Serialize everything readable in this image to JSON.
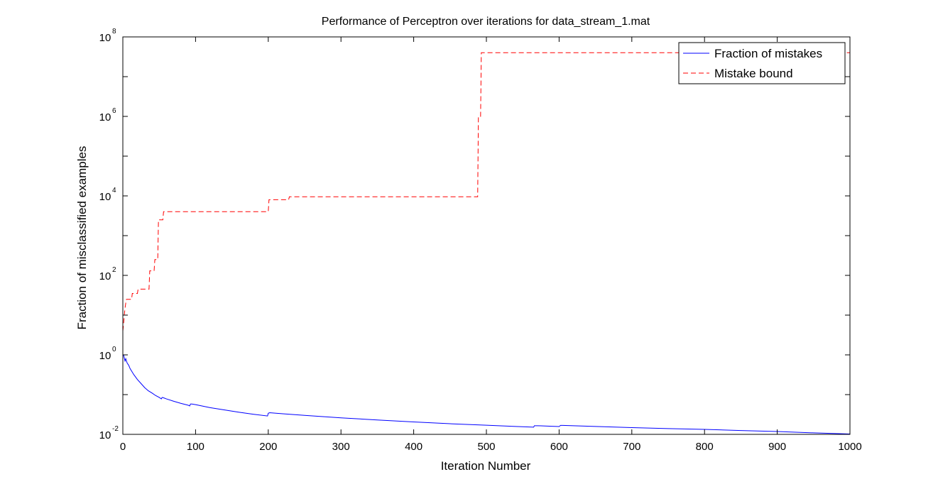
{
  "chart_data": {
    "type": "line",
    "title": "Performance of Perceptron over iterations for data_stream_1.mat",
    "xlabel": "Iteration Number",
    "ylabel": "Fraction of misclassified examples",
    "xlim": [
      0,
      1000
    ],
    "ylim": [
      0.01,
      100000000
    ],
    "yscale": "log",
    "grid": false,
    "legend_position": "top-right",
    "x_ticks": [
      "0",
      "100",
      "200",
      "300",
      "400",
      "500",
      "600",
      "700",
      "800",
      "900",
      "1000"
    ],
    "y_ticks": [
      {
        "base": "10",
        "exp": "-2",
        "value": 0.01
      },
      {
        "base": "10",
        "exp": "0",
        "value": 1
      },
      {
        "base": "10",
        "exp": "2",
        "value": 100
      },
      {
        "base": "10",
        "exp": "4",
        "value": 10000
      },
      {
        "base": "10",
        "exp": "6",
        "value": 1000000
      },
      {
        "base": "10",
        "exp": "8",
        "value": 100000000
      }
    ],
    "series": [
      {
        "name": "Fraction of mistakes",
        "color": "#0000ff",
        "style": "solid",
        "x": [
          1,
          3,
          4,
          5,
          6,
          8,
          10,
          15,
          20,
          25,
          30,
          35,
          40,
          45,
          50,
          53,
          54,
          56,
          60,
          70,
          80,
          90,
          92,
          93,
          95,
          100,
          120,
          140,
          160,
          180,
          199,
          200,
          202,
          220,
          250,
          300,
          350,
          400,
          450,
          500,
          540,
          565,
          566,
          570,
          590,
          600,
          602,
          605,
          620,
          650,
          700,
          750,
          800,
          850,
          900,
          950,
          1000
        ],
        "y": [
          1.0,
          0.7,
          0.8,
          0.7,
          0.62,
          0.55,
          0.45,
          0.32,
          0.24,
          0.19,
          0.15,
          0.125,
          0.11,
          0.095,
          0.085,
          0.078,
          0.085,
          0.083,
          0.078,
          0.068,
          0.06,
          0.054,
          0.052,
          0.058,
          0.058,
          0.056,
          0.047,
          0.041,
          0.036,
          0.032,
          0.029,
          0.034,
          0.035,
          0.033,
          0.03,
          0.026,
          0.023,
          0.0205,
          0.0185,
          0.017,
          0.0158,
          0.0152,
          0.0165,
          0.0165,
          0.016,
          0.0157,
          0.0168,
          0.0168,
          0.0165,
          0.0158,
          0.0148,
          0.014,
          0.0133,
          0.0125,
          0.0118,
          0.0109,
          0.0102
        ]
      },
      {
        "name": "Mistake bound",
        "color": "#ff0000",
        "style": "dashed",
        "x": [
          0,
          1,
          2,
          3,
          4,
          5,
          12,
          13,
          20,
          21,
          36,
          37,
          43,
          44,
          48,
          49,
          55,
          56,
          200,
          201,
          228,
          229,
          488,
          489,
          492,
          493,
          1000
        ],
        "y": [
          4,
          6,
          10,
          15,
          20,
          25,
          25,
          35,
          35,
          45,
          45,
          130,
          130,
          250,
          250,
          2500,
          2500,
          4000,
          4000,
          8000,
          8000,
          9500,
          9500,
          1000000,
          1000000,
          40000000,
          40000000
        ]
      }
    ]
  }
}
